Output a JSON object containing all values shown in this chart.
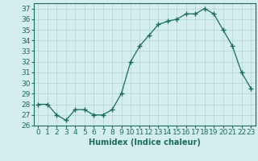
{
  "x": [
    0,
    1,
    2,
    3,
    4,
    5,
    6,
    7,
    8,
    9,
    10,
    11,
    12,
    13,
    14,
    15,
    16,
    17,
    18,
    19,
    20,
    21,
    22,
    23
  ],
  "y": [
    28,
    28,
    27,
    26.5,
    27.5,
    27.5,
    27,
    27,
    27.5,
    29,
    32,
    33.5,
    34.5,
    35.5,
    35.8,
    36,
    36.5,
    36.5,
    37,
    36.5,
    35,
    33.5,
    31,
    29.5
  ],
  "line_color": "#1a6b5a",
  "marker": "+",
  "marker_size": 4,
  "background_color": "#d4eeed",
  "grid_color": "#b0d4d0",
  "xlabel": "Humidex (Indice chaleur)",
  "xlim": [
    -0.5,
    23.5
  ],
  "ylim": [
    26,
    37.5
  ],
  "yticks": [
    26,
    27,
    28,
    29,
    30,
    31,
    32,
    33,
    34,
    35,
    36,
    37
  ],
  "xtick_labels": [
    "0",
    "1",
    "2",
    "3",
    "4",
    "5",
    "6",
    "7",
    "8",
    "9",
    "10",
    "11",
    "12",
    "13",
    "14",
    "15",
    "16",
    "17",
    "18",
    "19",
    "20",
    "21",
    "22",
    "23"
  ],
  "label_fontsize": 7,
  "tick_fontsize": 6.5
}
